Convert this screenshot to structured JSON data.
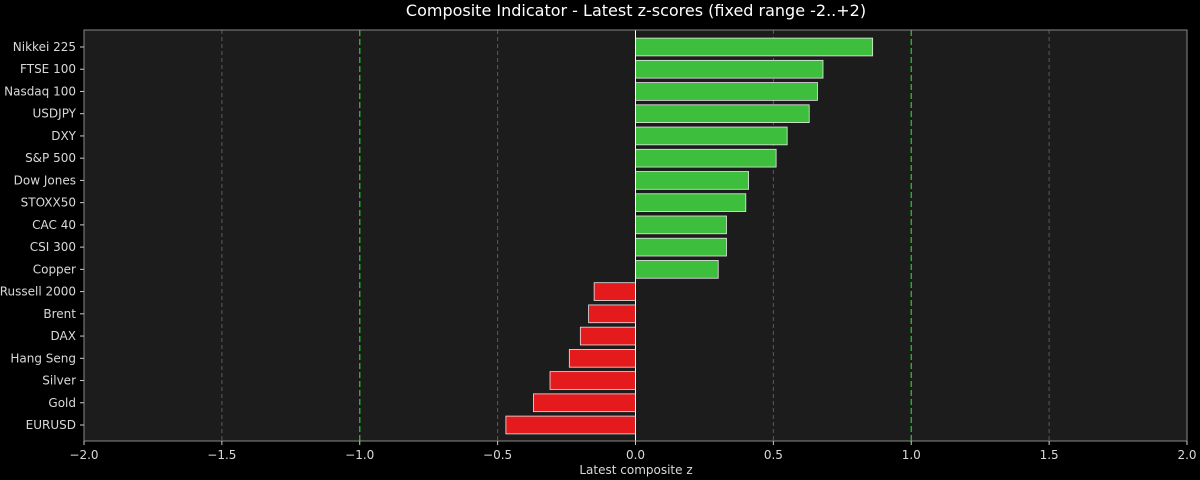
{
  "chart_data": {
    "type": "bar",
    "orientation": "horizontal",
    "title": "Composite Indicator - Latest z-scores (fixed range -2..+2)",
    "xlabel": "Latest composite z",
    "ylabel": "",
    "xlim": [
      -2.0,
      2.0
    ],
    "xticks": [
      "−2.0",
      "−1.5",
      "−1.0",
      "−0.5",
      "0.0",
      "0.5",
      "1.0",
      "1.5",
      "2.0"
    ],
    "xtick_values": [
      -2.0,
      -1.5,
      -1.0,
      -0.5,
      0.0,
      0.5,
      1.0,
      1.5,
      2.0
    ],
    "threshold_lines": [
      -1.0,
      1.0
    ],
    "grid": "vertical dashed",
    "categories": [
      "Nikkei 225",
      "FTSE 100",
      "Nasdaq 100",
      "USDJPY",
      "DXY",
      "S&P 500",
      "Dow Jones",
      "STOXX50",
      "CAC 40",
      "CSI 300",
      "Copper",
      "Russell 2000",
      "Brent",
      "DAX",
      "Hang Seng",
      "Silver",
      "Gold",
      "EURUSD"
    ],
    "values": [
      0.86,
      0.68,
      0.66,
      0.63,
      0.55,
      0.51,
      0.41,
      0.4,
      0.33,
      0.33,
      0.3,
      -0.15,
      -0.17,
      -0.2,
      -0.24,
      -0.31,
      -0.37,
      -0.47
    ],
    "colors": {
      "positive": "#3dbf3d",
      "negative": "#e41a1c",
      "threshold": "#22c222",
      "background": "#000000",
      "plot_background": "#1c1c1c"
    }
  }
}
